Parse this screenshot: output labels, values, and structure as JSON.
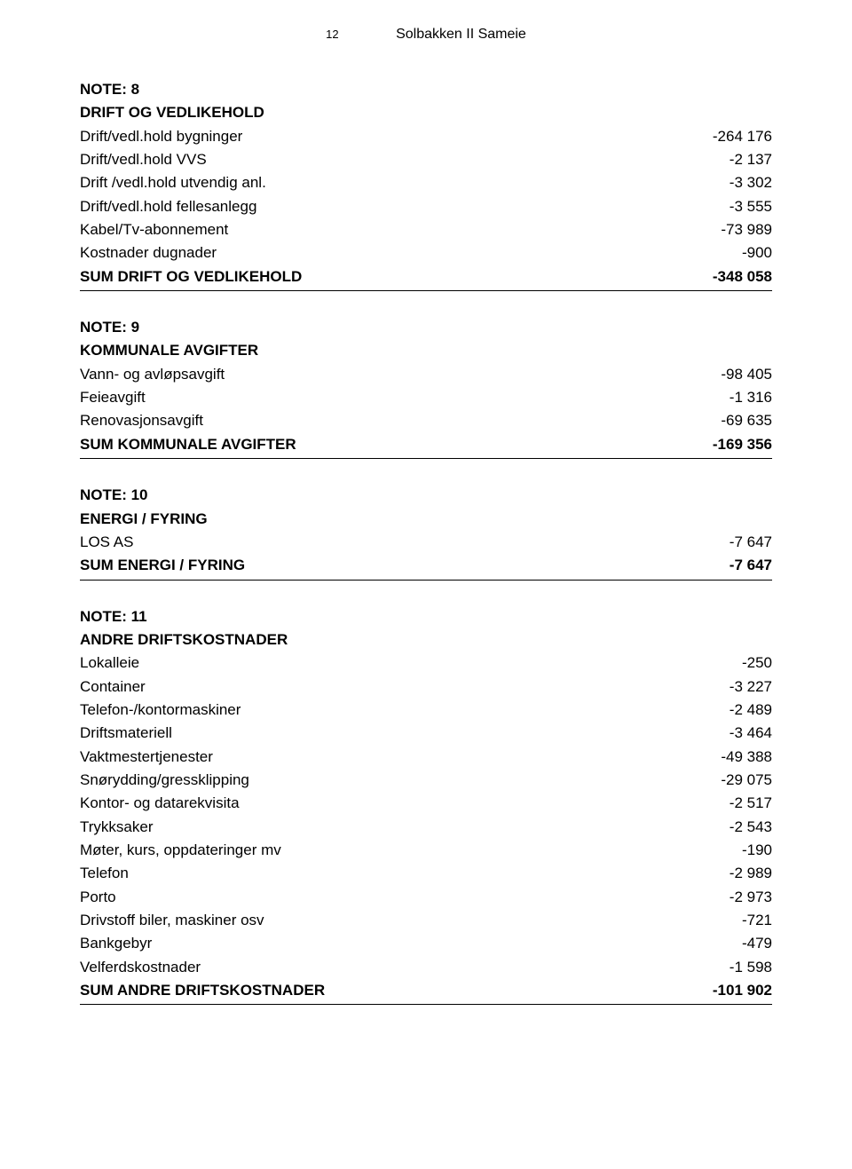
{
  "header": {
    "page_number": "12",
    "title": "Solbakken II Sameie"
  },
  "note8": {
    "note_label": "NOTE: 8",
    "title": "DRIFT OG VEDLIKEHOLD",
    "rows": [
      {
        "label": "Drift/vedl.hold bygninger",
        "value": "-264 176"
      },
      {
        "label": "Drift/vedl.hold VVS",
        "value": "-2 137"
      },
      {
        "label": "Drift /vedl.hold utvendig anl.",
        "value": "-3 302"
      },
      {
        "label": "Drift/vedl.hold fellesanlegg",
        "value": "-3 555"
      },
      {
        "label": "Kabel/Tv-abonnement",
        "value": "-73 989"
      },
      {
        "label": "Kostnader dugnader",
        "value": "-900"
      }
    ],
    "sum": {
      "label": "SUM DRIFT OG VEDLIKEHOLD",
      "value": "-348 058"
    }
  },
  "note9": {
    "note_label": "NOTE: 9",
    "title": "KOMMUNALE AVGIFTER",
    "rows": [
      {
        "label": "Vann- og avløpsavgift",
        "value": "-98 405"
      },
      {
        "label": "Feieavgift",
        "value": "-1 316"
      },
      {
        "label": "Renovasjonsavgift",
        "value": "-69 635"
      }
    ],
    "sum": {
      "label": "SUM KOMMUNALE AVGIFTER",
      "value": "-169 356"
    }
  },
  "note10": {
    "note_label": "NOTE: 10",
    "title": "ENERGI / FYRING",
    "rows": [
      {
        "label": "LOS AS",
        "value": "-7 647"
      }
    ],
    "sum": {
      "label": "SUM ENERGI / FYRING",
      "value": "-7 647"
    }
  },
  "note11": {
    "note_label": "NOTE: 11",
    "title": "ANDRE DRIFTSKOSTNADER",
    "rows": [
      {
        "label": "Lokalleie",
        "value": "-250"
      },
      {
        "label": "Container",
        "value": "-3 227"
      },
      {
        "label": "Telefon-/kontormaskiner",
        "value": "-2 489"
      },
      {
        "label": "Driftsmateriell",
        "value": "-3 464"
      },
      {
        "label": "Vaktmestertjenester",
        "value": "-49 388"
      },
      {
        "label": "Snørydding/gressklipping",
        "value": "-29 075"
      },
      {
        "label": "Kontor- og datarekvisita",
        "value": "-2 517"
      },
      {
        "label": "Trykksaker",
        "value": "-2 543"
      },
      {
        "label": "Møter, kurs, oppdateringer mv",
        "value": "-190"
      },
      {
        "label": "Telefon",
        "value": "-2 989"
      },
      {
        "label": "Porto",
        "value": "-2 973"
      },
      {
        "label": "Drivstoff biler, maskiner osv",
        "value": "-721"
      },
      {
        "label": "Bankgebyr",
        "value": "-479"
      },
      {
        "label": "Velferdskostnader",
        "value": "-1 598"
      }
    ],
    "sum": {
      "label": "SUM ANDRE DRIFTSKOSTNADER",
      "value": "-101 902"
    }
  }
}
